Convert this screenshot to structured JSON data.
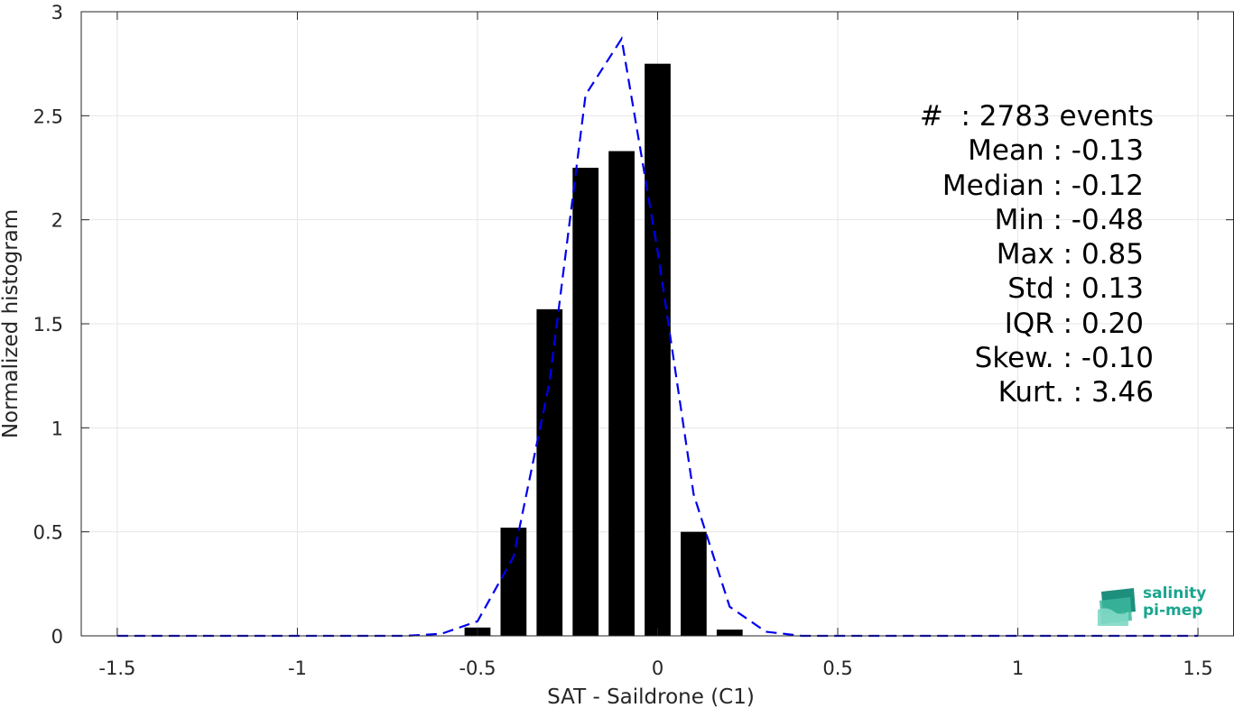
{
  "chart_data": {
    "type": "bar",
    "xlabel": "SAT - Saildrone (C1)",
    "ylabel": "Normalized histogram",
    "xlim": [
      -1.6,
      1.6
    ],
    "ylim": [
      0,
      3
    ],
    "xticks": [
      -1.5,
      -1,
      -0.5,
      0,
      0.5,
      1,
      1.5
    ],
    "xtick_labels": [
      "-1.5",
      "-1",
      "-0.5",
      "0",
      "0.5",
      "1",
      "1.5"
    ],
    "yticks": [
      0,
      0.5,
      1,
      1.5,
      2,
      2.5,
      3
    ],
    "ytick_labels": [
      "0",
      "0.5",
      "1",
      "1.5",
      "2",
      "2.5",
      "3"
    ],
    "grid": true,
    "bar_color": "#000000",
    "bars": {
      "x": [
        -0.5,
        -0.4,
        -0.3,
        -0.2,
        -0.1,
        0.0,
        0.1,
        0.2
      ],
      "values": [
        0.04,
        0.52,
        1.57,
        2.25,
        2.33,
        2.75,
        0.5,
        0.03
      ]
    },
    "curve": {
      "style": "dashed",
      "color": "#0000ee",
      "x": [
        -1.5,
        -1.4,
        -1.3,
        -1.2,
        -1.1,
        -1.0,
        -0.9,
        -0.8,
        -0.7,
        -0.6,
        -0.5,
        -0.4,
        -0.3,
        -0.2,
        -0.1,
        0.0,
        0.1,
        0.2,
        0.3,
        0.4,
        0.5,
        0.6,
        0.7,
        0.8,
        0.9,
        1.0,
        1.1,
        1.2,
        1.3,
        1.4,
        1.5
      ],
      "y": [
        0,
        0,
        0,
        0,
        0,
        0,
        0,
        0,
        0,
        0.01,
        0.07,
        0.38,
        1.22,
        2.6,
        2.87,
        1.85,
        0.68,
        0.14,
        0.02,
        0,
        0,
        0,
        0,
        0,
        0,
        0,
        0,
        0,
        0,
        0,
        0
      ]
    }
  },
  "stats": [
    {
      "label": "#  ",
      "value": ": 2783 events"
    },
    {
      "label": "Mean ",
      "value": ": -0.13"
    },
    {
      "label": "Median ",
      "value": ": -0.12"
    },
    {
      "label": "Min ",
      "value": ": -0.48"
    },
    {
      "label": "Max ",
      "value": ": 0.85"
    },
    {
      "label": "Std ",
      "value": ": 0.13"
    },
    {
      "label": "IQR ",
      "value": ": 0.20"
    },
    {
      "label": "Skew. ",
      "value": ": -0.10"
    },
    {
      "label": "Kurt. ",
      "value": ": 3.46"
    }
  ],
  "logo": {
    "line1": "salinity",
    "line2": "pi-mep"
  }
}
